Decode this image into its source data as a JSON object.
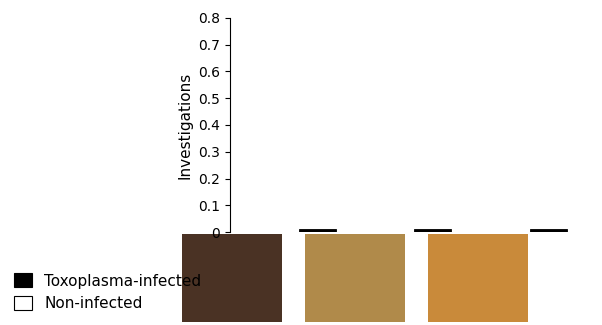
{
  "chart_data": {
    "type": "bar",
    "y_label": "Investigations",
    "categories": [
      null,
      null,
      null
    ],
    "series": [
      {
        "name": "Non-infected",
        "color": "#ffffff",
        "values": [
          0,
          0,
          0
        ]
      },
      {
        "name": "Toxoplasma-infected",
        "color": "#000000",
        "values": [
          0.01,
          0.01,
          0.01
        ]
      }
    ],
    "ylim": [
      0,
      0.8
    ],
    "yticks": [
      0,
      0.1,
      0.2,
      0.3,
      0.4,
      0.5,
      0.6,
      0.7,
      0.8
    ],
    "legend": "lower left",
    "tick_labels": "y"
  }
}
